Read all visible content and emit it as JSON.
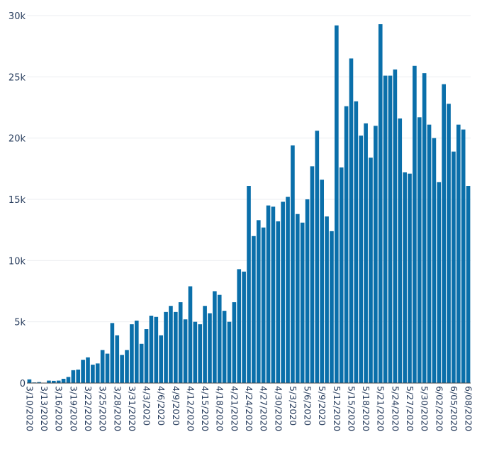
{
  "chart_data": {
    "type": "bar",
    "title": "",
    "xlabel": "",
    "ylabel": "",
    "ylim": [
      0,
      30000
    ],
    "yticks": [
      0,
      5000,
      10000,
      15000,
      20000,
      25000,
      30000
    ],
    "ytick_labels": [
      "0",
      "5k",
      "10k",
      "15k",
      "20k",
      "25k",
      "30k"
    ],
    "grid": true,
    "bar_color": "#0a6faa",
    "xtick_labels": [
      "3/10/2020",
      "3/13/2020",
      "3/16/2020",
      "3/19/2020",
      "3/22/2020",
      "3/25/2020",
      "3/28/2020",
      "3/31/2020",
      "4/3/2020",
      "4/6/2020",
      "4/9/2020",
      "4/12/2020",
      "4/15/2020",
      "4/18/2020",
      "4/21/2020",
      "4/24/2020",
      "4/27/2020",
      "4/30/2020",
      "5/3/2020",
      "5/6/2020",
      "5/9/2020",
      "5/12/2020",
      "5/15/2020",
      "5/18/2020",
      "5/21/2020",
      "5/24/2020",
      "5/27/2020",
      "5/30/2020",
      "6/02/2020",
      "6/05/2020",
      "6/08/2020"
    ],
    "categories": [
      "3/10/2020",
      "3/11/2020",
      "3/12/2020",
      "3/13/2020",
      "3/14/2020",
      "3/15/2020",
      "3/16/2020",
      "3/17/2020",
      "3/18/2020",
      "3/19/2020",
      "3/20/2020",
      "3/21/2020",
      "3/22/2020",
      "3/23/2020",
      "3/24/2020",
      "3/25/2020",
      "3/26/2020",
      "3/27/2020",
      "3/28/2020",
      "3/29/2020",
      "3/30/2020",
      "3/31/2020",
      "4/1/2020",
      "4/2/2020",
      "4/3/2020",
      "4/4/2020",
      "4/5/2020",
      "4/6/2020",
      "4/7/2020",
      "4/8/2020",
      "4/9/2020",
      "4/10/2020",
      "4/11/2020",
      "4/12/2020",
      "4/13/2020",
      "4/14/2020",
      "4/15/2020",
      "4/16/2020",
      "4/17/2020",
      "4/18/2020",
      "4/19/2020",
      "4/20/2020",
      "4/21/2020",
      "4/22/2020",
      "4/23/2020",
      "4/24/2020",
      "4/25/2020",
      "4/26/2020",
      "4/27/2020",
      "4/28/2020",
      "4/29/2020",
      "4/30/2020",
      "5/1/2020",
      "5/2/2020",
      "5/3/2020",
      "5/4/2020",
      "5/5/2020",
      "5/6/2020",
      "5/7/2020",
      "5/8/2020",
      "5/9/2020",
      "5/10/2020",
      "5/11/2020",
      "5/12/2020",
      "5/13/2020",
      "5/14/2020",
      "5/15/2020",
      "5/16/2020",
      "5/17/2020",
      "5/18/2020",
      "5/19/2020",
      "5/20/2020",
      "5/21/2020",
      "5/22/2020",
      "5/23/2020",
      "5/24/2020",
      "5/25/2020",
      "5/26/2020",
      "5/27/2020",
      "5/28/2020",
      "5/29/2020",
      "5/30/2020",
      "5/31/2020",
      "6/1/2020",
      "6/2/2020",
      "6/3/2020",
      "6/4/2020",
      "6/5/2020",
      "6/6/2020",
      "6/7/2020",
      "6/8/2020"
    ],
    "values": [
      300,
      50,
      80,
      30,
      200,
      180,
      200,
      350,
      500,
      1050,
      1100,
      1900,
      2100,
      1500,
      1600,
      2700,
      2400,
      4900,
      3900,
      2300,
      2700,
      4800,
      5100,
      3200,
      4400,
      5500,
      5400,
      3900,
      5800,
      6300,
      5800,
      6600,
      5200,
      7900,
      5000,
      4800,
      6300,
      5700,
      7500,
      7200,
      5900,
      5000,
      6600,
      9300,
      9100,
      16100,
      12000,
      13300,
      12700,
      14500,
      14400,
      13200,
      14800,
      15200,
      19400,
      13800,
      13100,
      15000,
      17700,
      20600,
      16600,
      13600,
      12400,
      29200,
      17600,
      22600,
      26500,
      23000,
      20200,
      21200,
      18400,
      21000,
      29300,
      25100,
      25100,
      25600,
      21600,
      17200,
      17100,
      25900,
      21700,
      25300,
      21100,
      20000,
      16400,
      24400,
      22800,
      18900,
      21100,
      20700,
      16100
    ]
  }
}
